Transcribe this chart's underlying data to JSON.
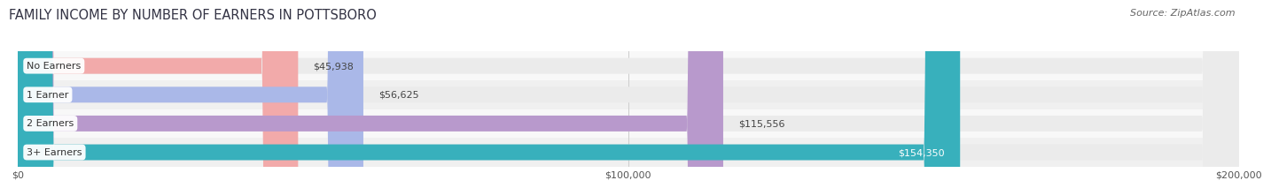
{
  "title": "FAMILY INCOME BY NUMBER OF EARNERS IN POTTSBORO",
  "source": "Source: ZipAtlas.com",
  "categories": [
    "No Earners",
    "1 Earner",
    "2 Earners",
    "3+ Earners"
  ],
  "values": [
    45938,
    56625,
    115556,
    154350
  ],
  "bar_colors": [
    "#f2aaaa",
    "#aab8e8",
    "#b899cc",
    "#38b0bc"
  ],
  "bar_bg_color": "#ebebeb",
  "row_bg_colors": [
    "#f8f8f8",
    "#f0f0f0",
    "#f8f8f8",
    "#f0f0f0"
  ],
  "label_inside": [
    false,
    false,
    false,
    true
  ],
  "xlim": [
    0,
    200000
  ],
  "background_color": "#ffffff",
  "title_fontsize": 10.5,
  "source_fontsize": 8,
  "tick_labels": [
    "$0",
    "$100,000",
    "$200,000"
  ],
  "tick_values": [
    0,
    100000,
    200000
  ]
}
